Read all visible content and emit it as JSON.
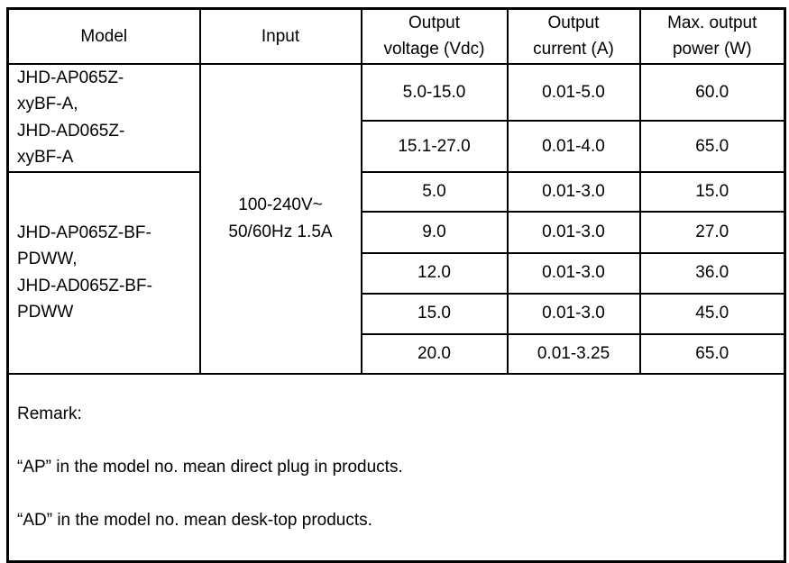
{
  "table": {
    "headers": {
      "model": "Model",
      "input": "Input",
      "voltage": "Output\nvoltage (Vdc)",
      "current": "Output\ncurrent (A)",
      "power": "Max. output\npower (W)"
    },
    "model_groups": [
      {
        "name": "JHD-AP065Z-\nxyBF-A,\nJHD-AD065Z-\nxyBF-A"
      },
      {
        "name": "JHD-AP065Z-BF-\nPDWW,\nJHD-AD065Z-BF-\nPDWW"
      }
    ],
    "input_value": "100-240V~\n50/60Hz 1.5A",
    "rows": [
      {
        "voltage": "5.0-15.0",
        "current": "0.01-5.0",
        "power": "60.0"
      },
      {
        "voltage": "15.1-27.0",
        "current": "0.01-4.0",
        "power": "65.0"
      },
      {
        "voltage": "5.0",
        "current": "0.01-3.0",
        "power": "15.0"
      },
      {
        "voltage": "9.0",
        "current": "0.01-3.0",
        "power": "27.0"
      },
      {
        "voltage": "12.0",
        "current": "0.01-3.0",
        "power": "36.0"
      },
      {
        "voltage": "15.0",
        "current": "0.01-3.0",
        "power": "45.0"
      },
      {
        "voltage": "20.0",
        "current": "0.01-3.25",
        "power": "65.0"
      }
    ],
    "remark": {
      "title": "Remark:",
      "lines": [
        "“AP” in the model no. mean direct plug in products.",
        "“AD” in the model no. mean desk-top products."
      ]
    }
  },
  "colors": {
    "border": "#000000",
    "text": "#000000",
    "background": "#ffffff"
  }
}
